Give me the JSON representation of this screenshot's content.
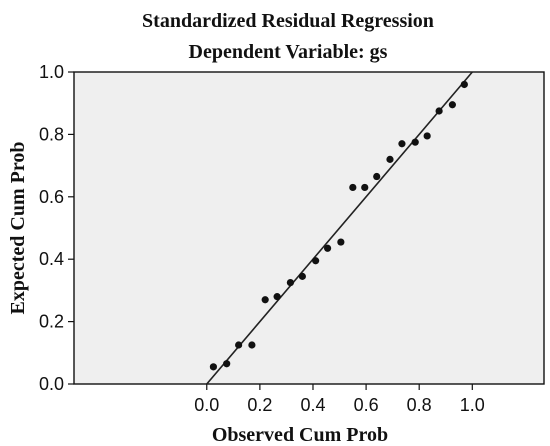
{
  "chart_data": {
    "type": "scatter",
    "title": "Standardized Residual Regression",
    "subtitle": "Dependent Variable: gs",
    "xlabel": "Observed Cum Prob",
    "ylabel": "Expected Cum Prob",
    "xlim": [
      -0.5,
      1.27
    ],
    "ylim": [
      0.0,
      1.0
    ],
    "x_ticks": [
      "0.0",
      "0.2",
      "0.4",
      "0.6",
      "0.8",
      "1.0"
    ],
    "y_ticks": [
      "0.0",
      "0.2",
      "0.4",
      "0.6",
      "0.8",
      "1.0"
    ],
    "grid": false,
    "colors": {
      "plot_background": "#efefef",
      "points": "#111111",
      "line": "#222222"
    },
    "reference_line": {
      "from": [
        0.0,
        0.0
      ],
      "to": [
        1.0,
        1.0
      ]
    },
    "points": [
      {
        "x": 0.025,
        "y": 0.055
      },
      {
        "x": 0.075,
        "y": 0.065
      },
      {
        "x": 0.12,
        "y": 0.125
      },
      {
        "x": 0.17,
        "y": 0.125
      },
      {
        "x": 0.22,
        "y": 0.27
      },
      {
        "x": 0.265,
        "y": 0.28
      },
      {
        "x": 0.315,
        "y": 0.325
      },
      {
        "x": 0.36,
        "y": 0.345
      },
      {
        "x": 0.41,
        "y": 0.395
      },
      {
        "x": 0.455,
        "y": 0.435
      },
      {
        "x": 0.505,
        "y": 0.455
      },
      {
        "x": 0.55,
        "y": 0.63
      },
      {
        "x": 0.595,
        "y": 0.63
      },
      {
        "x": 0.64,
        "y": 0.665
      },
      {
        "x": 0.69,
        "y": 0.72
      },
      {
        "x": 0.735,
        "y": 0.77
      },
      {
        "x": 0.785,
        "y": 0.775
      },
      {
        "x": 0.83,
        "y": 0.795
      },
      {
        "x": 0.875,
        "y": 0.875
      },
      {
        "x": 0.925,
        "y": 0.895
      },
      {
        "x": 0.97,
        "y": 0.96
      }
    ]
  }
}
